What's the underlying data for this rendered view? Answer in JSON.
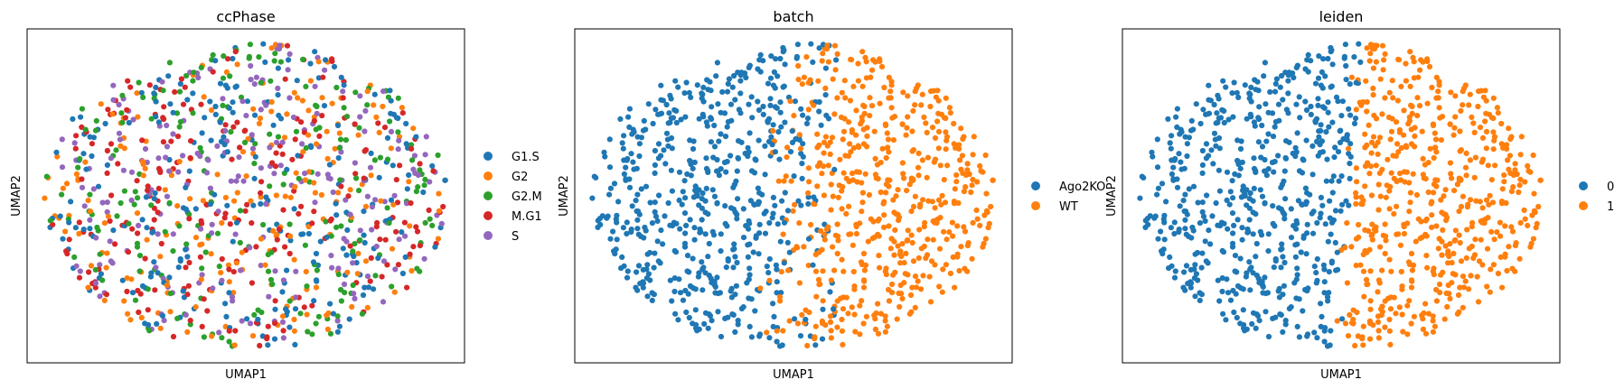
{
  "chart_data": [
    {
      "type": "scatter",
      "title": "ccPhase",
      "xlabel": "UMAP1",
      "ylabel": "UMAP2",
      "grid": false,
      "legend_placement": "right",
      "categories": [
        "G1.S",
        "G2",
        "G2.M",
        "M.G1",
        "S"
      ],
      "colors": [
        "#1f77b4",
        "#ff7f0e",
        "#2ca02c",
        "#d62728",
        "#9467bd"
      ],
      "coloring": "mixed",
      "n_points": 1100
    },
    {
      "type": "scatter",
      "title": "batch",
      "xlabel": "UMAP1",
      "ylabel": "UMAP2",
      "grid": false,
      "legend_placement": "right",
      "categories": [
        "Ago2KO",
        "WT"
      ],
      "colors": [
        "#1f77b4",
        "#ff7f0e"
      ],
      "coloring": "split_soft",
      "n_points": 1100
    },
    {
      "type": "scatter",
      "title": "leiden",
      "xlabel": "UMAP1",
      "ylabel": "UMAP2",
      "grid": false,
      "legend_placement": "right",
      "categories": [
        "0",
        "1"
      ],
      "colors": [
        "#1f77b4",
        "#ff7f0e"
      ],
      "coloring": "split_sharp",
      "n_points": 1100
    }
  ]
}
